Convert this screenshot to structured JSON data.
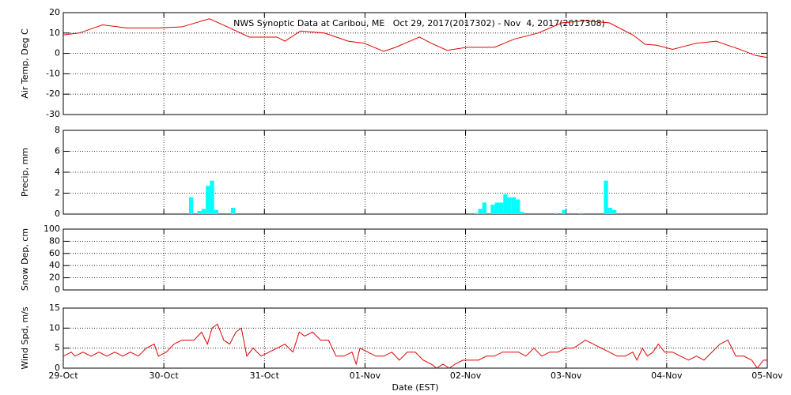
{
  "chart_data": [
    {
      "type": "line",
      "title": "NWS Synoptic Data at Caribou, ME   Oct 29, 2017(2017302) - Nov  4, 2017(2017308)",
      "y_label": "Air Temp, Deg C",
      "ylim": [
        -30,
        20
      ],
      "yticks": [
        -30,
        -20,
        -10,
        0,
        10,
        20
      ],
      "xlim": [
        0,
        168
      ],
      "xticks": [
        0,
        24,
        48,
        72,
        96,
        120,
        144,
        168
      ],
      "grid": true,
      "color": "#e00000",
      "x": [
        0,
        3.8,
        9.4,
        15.1,
        22.7,
        28.3,
        34.9,
        39.7,
        44.4,
        51,
        52.9,
        56.6,
        62.3,
        68,
        71.8,
        76.5,
        79.3,
        85,
        87.8,
        91.6,
        96.3,
        102.9,
        107.6,
        113.3,
        119,
        124.6,
        130.3,
        136,
        138.8,
        141.6,
        145.4,
        151.1,
        155.8,
        161.4,
        165.2,
        168
      ],
      "values": [
        9.1,
        10,
        14,
        12.5,
        12.5,
        13,
        17,
        12.5,
        8,
        8,
        6,
        11,
        10,
        6,
        5,
        1,
        3,
        8,
        5,
        1.5,
        3,
        3,
        7,
        10,
        15,
        16,
        15,
        9,
        4.5,
        4,
        2,
        5,
        6,
        2,
        -1,
        -2
      ]
    },
    {
      "type": "bar",
      "y_label": "Precip, mm",
      "ylim": [
        0,
        8
      ],
      "yticks": [
        0,
        2,
        4,
        6,
        8
      ],
      "xlim": [
        0,
        168
      ],
      "xticks": [
        0,
        24,
        48,
        72,
        96,
        120,
        144,
        168
      ],
      "grid": true,
      "color": "#00ffff",
      "x": [
        30,
        32,
        33,
        34,
        35,
        36,
        40,
        98,
        99,
        100,
        102,
        103,
        104,
        105,
        106,
        107,
        108,
        109,
        117,
        119,
        123,
        129,
        130,
        131
      ],
      "values": [
        1.6,
        0.3,
        0.5,
        2.7,
        3.2,
        0.4,
        0.6,
        0.1,
        0.5,
        1.1,
        0.9,
        1.1,
        1.1,
        1.9,
        1.6,
        1.6,
        1.4,
        0.2,
        0.1,
        0.4,
        0.1,
        3.2,
        0.6,
        0.4
      ]
    },
    {
      "type": "line",
      "y_label": "Snow Dep, cm",
      "ylim": [
        0,
        100
      ],
      "yticks": [
        0,
        20,
        40,
        60,
        80,
        100
      ],
      "xlim": [
        0,
        168
      ],
      "xticks": [
        0,
        24,
        48,
        72,
        96,
        120,
        144,
        168
      ],
      "grid": true
    },
    {
      "type": "line",
      "y_label": "Wind Spd, m/s",
      "x_label": "Date (EST)",
      "ylim": [
        0,
        15
      ],
      "yticks": [
        0,
        5,
        10,
        15
      ],
      "xlim": [
        0,
        168
      ],
      "xticks": [
        {
          "value": 0,
          "label": "29-Oct"
        },
        {
          "value": 24,
          "label": "30-Oct"
        },
        {
          "value": 48,
          "label": "31-Oct"
        },
        {
          "value": 72,
          "label": "01-Nov"
        },
        {
          "value": 96,
          "label": "02-Nov"
        },
        {
          "value": 120,
          "label": "03-Nov"
        },
        {
          "value": 144,
          "label": "04-Nov"
        },
        {
          "value": 168,
          "label": "05-Nov"
        }
      ],
      "grid": true,
      "color": "#e00000",
      "x": [
        0,
        1.9,
        2.8,
        4.7,
        6.6,
        8.5,
        10.4,
        12.3,
        14.2,
        16,
        17.9,
        19.8,
        21.7,
        22.7,
        24.6,
        26.4,
        28.3,
        31.2,
        33,
        34.4,
        35.5,
        36.8,
        38.3,
        39.7,
        41.2,
        42.5,
        43.8,
        45.3,
        47.2,
        49.1,
        51,
        52.9,
        54.8,
        56.3,
        57.6,
        59.5,
        61.4,
        63.3,
        65.1,
        67,
        68.9,
        69.9,
        70.8,
        72.7,
        74.6,
        76.5,
        78.4,
        80.2,
        82.1,
        84,
        85.9,
        87.8,
        89.1,
        90.6,
        92.1,
        93.5,
        95.4,
        97.2,
        99.1,
        101,
        102.9,
        104.8,
        106.7,
        108.6,
        110.4,
        112.3,
        114.2,
        116.1,
        118,
        119.9,
        121.8,
        124.6,
        126.5,
        128.4,
        130.3,
        132.2,
        134.1,
        135.9,
        136.9,
        138.2,
        139.4,
        140.7,
        142,
        143.5,
        145.4,
        147.3,
        149.2,
        151.1,
        152.9,
        154.8,
        156.7,
        158.6,
        160.5,
        162.4,
        164.3,
        165.6,
        167.1,
        168
      ],
      "values": [
        3,
        4,
        3,
        4,
        3,
        4,
        3,
        4,
        3,
        4,
        3,
        5,
        6,
        3,
        4,
        6,
        7,
        7,
        9,
        6,
        10,
        11,
        7,
        6,
        9,
        10,
        3,
        5,
        3,
        4,
        5,
        6,
        4,
        9,
        8,
        9,
        7,
        7,
        3,
        3,
        4,
        1,
        5,
        4,
        3,
        3,
        4,
        2,
        4,
        4,
        2,
        1,
        0,
        1,
        0,
        1,
        2,
        2,
        2,
        3,
        3,
        4,
        4,
        4,
        3,
        5,
        3,
        4,
        4,
        5,
        5,
        7,
        6,
        5,
        4,
        3,
        3,
        4,
        2,
        5,
        3,
        4,
        6,
        4,
        4,
        3,
        2,
        3,
        2,
        4,
        6,
        7,
        3,
        3,
        2,
        0,
        2,
        2
      ]
    }
  ]
}
